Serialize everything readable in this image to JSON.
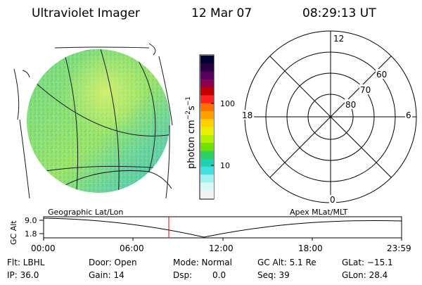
{
  "header": {
    "instrument": "Ultraviolet Imager",
    "date": "12 Mar 07",
    "time": "08:29:13 UT"
  },
  "colorbar": {
    "unit_label_base": "photon cm",
    "unit_exp1": "−2",
    "unit_mid": "s",
    "unit_exp2": "−1",
    "tick_100": "100",
    "tick_10": "10",
    "colors": [
      "#000033",
      "#2a0045",
      "#5a0060",
      "#8a0050",
      "#c00000",
      "#ff2020",
      "#ff7000",
      "#ffa000",
      "#ffd000",
      "#e8f000",
      "#b0f000",
      "#70e000",
      "#30d060",
      "#20d0b0",
      "#40e0e0",
      "#a0f0f0",
      "#d8f8f8",
      "#f2f2f2"
    ]
  },
  "polar_plot": {
    "label_12": "12",
    "label_18": "18",
    "label_6": "6",
    "label_0": "0",
    "label_60": "60",
    "label_70": "70",
    "label_80": "80"
  },
  "panel_labels": {
    "geographic": "Geographic Lat/Lon",
    "apex": "Apex MLat/MLT"
  },
  "orbit_plot": {
    "ylabel": "GC Alt",
    "ytick_top": "9.0",
    "ytick_bottom": "1.8",
    "xticks": [
      "00:00",
      "06:00",
      "12:00",
      "18:00",
      "23:59"
    ],
    "marker_color": "#e00000"
  },
  "info": {
    "flt": "Flt: LBHL",
    "ip": "IP: 36.0",
    "door": "Door: Open",
    "gain": "Gain: 14",
    "mode": "Mode: Normal",
    "dsp_label": "Dsp:",
    "dsp_value": "0.0",
    "gc_alt": "GC Alt: 5.1 Re",
    "seq": "Seq: 39",
    "glat": "GLat: −15.1",
    "glon": "GLon: 28.4"
  }
}
